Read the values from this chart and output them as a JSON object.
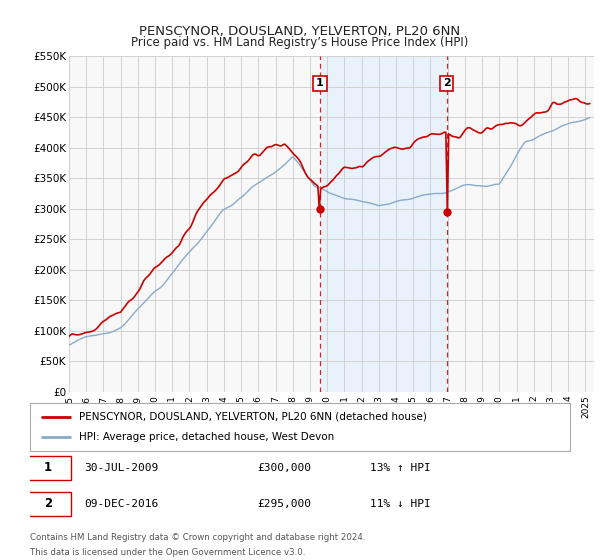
{
  "title": "PENSCYNOR, DOUSLAND, YELVERTON, PL20 6NN",
  "subtitle": "Price paid vs. HM Land Registry’s House Price Index (HPI)",
  "ylim": [
    0,
    550000
  ],
  "yticks": [
    0,
    50000,
    100000,
    150000,
    200000,
    250000,
    300000,
    350000,
    400000,
    450000,
    500000,
    550000
  ],
  "ytick_labels": [
    "£0",
    "£50K",
    "£100K",
    "£150K",
    "£200K",
    "£250K",
    "£300K",
    "£350K",
    "£400K",
    "£450K",
    "£500K",
    "£550K"
  ],
  "xlim_start": 1995.0,
  "xlim_end": 2025.5,
  "xticks": [
    1995,
    1996,
    1997,
    1998,
    1999,
    2000,
    2001,
    2002,
    2003,
    2004,
    2005,
    2006,
    2007,
    2008,
    2009,
    2010,
    2011,
    2012,
    2013,
    2014,
    2015,
    2016,
    2017,
    2018,
    2019,
    2020,
    2021,
    2022,
    2023,
    2024,
    2025
  ],
  "sale1_x": 2009.578,
  "sale1_y": 300000,
  "sale1_label": "1",
  "sale1_date": "30-JUL-2009",
  "sale1_price": "£300,000",
  "sale1_hpi": "13% ↑ HPI",
  "sale2_x": 2016.94,
  "sale2_y": 295000,
  "sale2_label": "2",
  "sale2_date": "09-DEC-2016",
  "sale2_price": "£295,000",
  "sale2_hpi": "11% ↓ HPI",
  "red_color": "#cc0000",
  "blue_color": "#88aacc",
  "shading_color": "#ddeeff",
  "grid_color": "#cccccc",
  "background_color": "#f8f8f8",
  "legend_label_red": "PENSCYNOR, DOUSLAND, YELVERTON, PL20 6NN (detached house)",
  "legend_label_blue": "HPI: Average price, detached house, West Devon",
  "footer1": "Contains HM Land Registry data © Crown copyright and database right 2024.",
  "footer2": "This data is licensed under the Open Government Licence v3.0."
}
